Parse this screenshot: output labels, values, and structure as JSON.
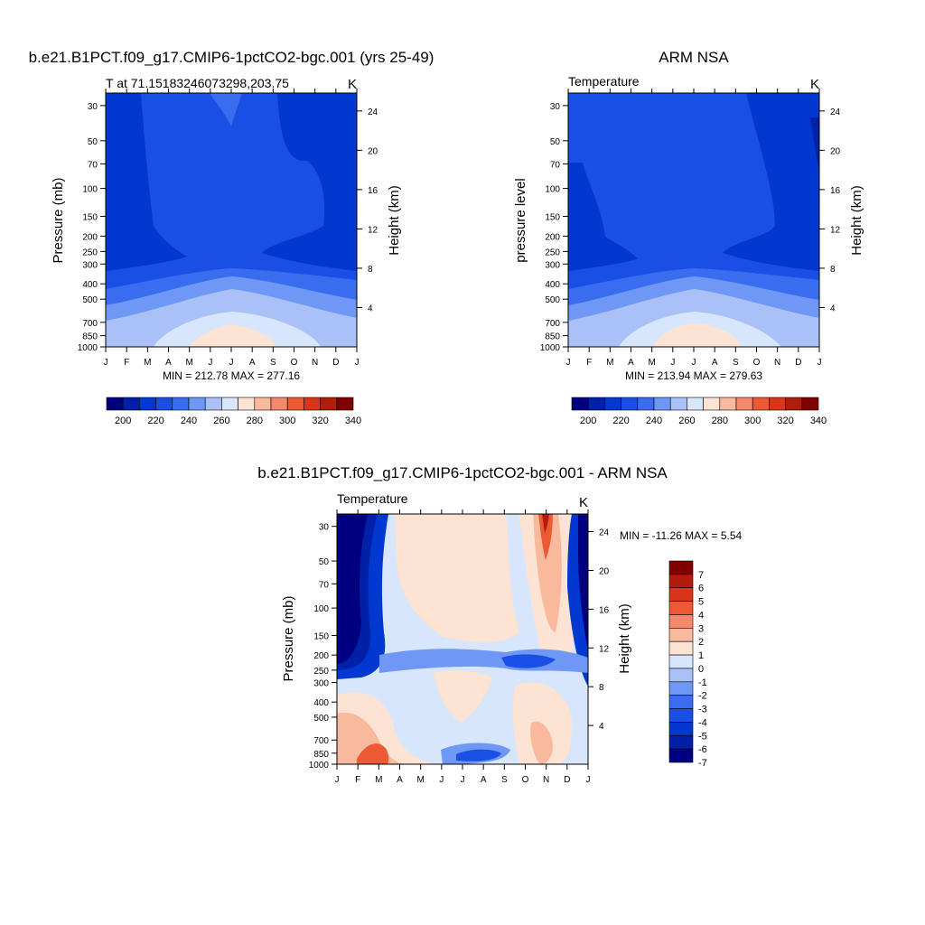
{
  "colors": {
    "temperature_scale": [
      "#000080",
      "#0020a8",
      "#0038d0",
      "#1a4fe6",
      "#3a6cf0",
      "#6f97f5",
      "#a9c1f7",
      "#d7e6fb",
      "#fde3d3",
      "#f9b99c",
      "#f4896b",
      "#ec5a35",
      "#d8361a",
      "#b01d0d",
      "#800000"
    ],
    "difference_scale": [
      "#000080",
      "#0020a8",
      "#0038d0",
      "#1a4fe6",
      "#3a6cf0",
      "#6f97f5",
      "#a9c1f7",
      "#d7e6fb",
      "#fde3d3",
      "#f9b99c",
      "#f4896b",
      "#ec5a35",
      "#d8361a",
      "#b01d0d",
      "#800000"
    ]
  },
  "panels": {
    "model": {
      "main_title": "b.e21.B1PCT.f09_g17.CMIP6-1pctCO2-bgc.001 (yrs 25-49)",
      "left_subtitle": "T at 71.15183246073298,203.75",
      "right_subtitle": "K",
      "ylabel": "Pressure (mb)",
      "right_ylabel": "Height (km)",
      "stats": "MIN = 212.78 MAX = 277.16",
      "colorbar_labels": [
        "200",
        "220",
        "240",
        "260",
        "280",
        "300",
        "320",
        "340"
      ]
    },
    "obs": {
      "main_title": "ARM NSA",
      "left_subtitle": "Temperature",
      "right_subtitle": "K",
      "ylabel": "pressure level",
      "right_ylabel": "Height (km)",
      "stats": "MIN = 213.94 MAX = 279.63",
      "colorbar_labels": [
        "200",
        "220",
        "240",
        "260",
        "280",
        "300",
        "320",
        "340"
      ]
    },
    "diff": {
      "main_title": "b.e21.B1PCT.f09_g17.CMIP6-1pctCO2-bgc.001 - ARM NSA",
      "left_subtitle": "Temperature",
      "right_subtitle": "K",
      "ylabel": "Pressure (mb)",
      "right_ylabel": "Height (km)",
      "stats": "MIN = -11.26 MAX =   5.54",
      "colorbar_labels": [
        "7",
        "6",
        "5",
        "4",
        "3",
        "2",
        "1",
        "0",
        "-1",
        "-2",
        "-3",
        "-4",
        "-5",
        "-6",
        "-7"
      ]
    }
  },
  "chart_data": [
    {
      "type": "heatmap",
      "title": "b.e21.B1PCT.f09_g17.CMIP6-1pctCO2-bgc.001 (yrs 25-49)",
      "subtitle": "T at 71.15183246073298,203.75",
      "units": "K",
      "x_ticks": [
        "J",
        "F",
        "M",
        "A",
        "M",
        "J",
        "J",
        "A",
        "S",
        "O",
        "N",
        "D",
        "J"
      ],
      "y_ticks": [
        "30",
        "50",
        "70",
        "100",
        "150",
        "200",
        "250",
        "300",
        "400",
        "500",
        "700",
        "850",
        "1000"
      ],
      "y2_ticks": [
        "24",
        "20",
        "16",
        "12",
        "8",
        "4"
      ],
      "xlabel": "",
      "ylabel": "Pressure (mb)",
      "y2label": "Height (km)",
      "min": 212.78,
      "max": 277.16
    },
    {
      "type": "heatmap",
      "title": "ARM NSA",
      "subtitle": "Temperature",
      "units": "K",
      "x_ticks": [
        "J",
        "F",
        "M",
        "A",
        "M",
        "J",
        "J",
        "A",
        "S",
        "O",
        "N",
        "D",
        "J"
      ],
      "y_ticks": [
        "30",
        "50",
        "70",
        "100",
        "150",
        "200",
        "250",
        "300",
        "400",
        "500",
        "700",
        "850",
        "1000"
      ],
      "y2_ticks": [
        "24",
        "20",
        "16",
        "12",
        "8",
        "4"
      ],
      "xlabel": "",
      "ylabel": "pressure level",
      "y2label": "Height (km)",
      "min": 213.94,
      "max": 279.63
    },
    {
      "type": "heatmap",
      "title": "b.e21.B1PCT.f09_g17.CMIP6-1pctCO2-bgc.001 - ARM NSA",
      "subtitle": "Temperature",
      "units": "K",
      "x_ticks": [
        "J",
        "F",
        "M",
        "A",
        "M",
        "J",
        "J",
        "A",
        "S",
        "O",
        "N",
        "D",
        "J"
      ],
      "y_ticks": [
        "30",
        "50",
        "70",
        "100",
        "150",
        "200",
        "250",
        "300",
        "400",
        "500",
        "700",
        "850",
        "1000"
      ],
      "y2_ticks": [
        "24",
        "20",
        "16",
        "12",
        "8",
        "4"
      ],
      "xlabel": "",
      "ylabel": "Pressure (mb)",
      "y2label": "Height (km)",
      "min": -11.26,
      "max": 5.54
    }
  ]
}
